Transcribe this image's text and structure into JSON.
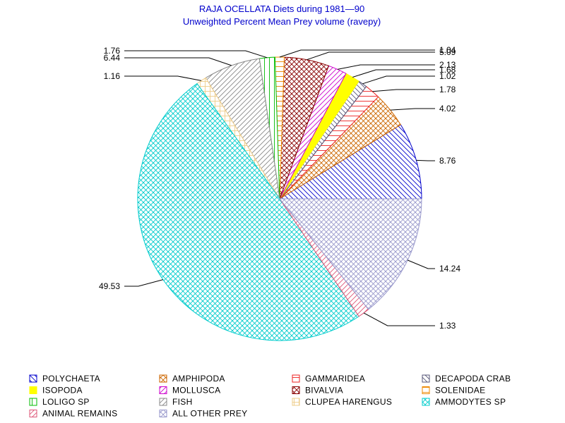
{
  "chart_data": {
    "type": "pie",
    "title": "RAJA OCELLATA Diets during 1981—90",
    "subtitle": "Unweighted Percent Mean Prey volume (ravepy)",
    "legend_placement": "bottom",
    "slices": [
      {
        "name": "POLYCHAETA",
        "value": 8.76,
        "label": "8.76",
        "color": "#0000cc",
        "pattern": "diag-down"
      },
      {
        "name": "AMPHIPODA",
        "value": 4.02,
        "label": "4.02",
        "color": "#cc6600",
        "pattern": "crosshatch"
      },
      {
        "name": "GAMMARIDEA",
        "value": 1.78,
        "label": "1.78",
        "color": "#ee2222",
        "pattern": "horizontal"
      },
      {
        "name": "DECAPODA CRAB",
        "value": 1.02,
        "label": "1.02",
        "color": "#555577",
        "pattern": "diag-down"
      },
      {
        "name": "ISOPODA",
        "value": 1.68,
        "label": "1.68",
        "color": "#ffff00",
        "pattern": "solid"
      },
      {
        "name": "MOLLUSCA",
        "value": 2.13,
        "label": "2.13",
        "color": "#cc00cc",
        "pattern": "diag-up"
      },
      {
        "name": "BIVALVIA",
        "value": 5.09,
        "label": "5.09",
        "color": "#880000",
        "pattern": "crosshatch"
      },
      {
        "name": "SOLENIDAE",
        "value": 1.04,
        "label": "1.04",
        "color": "#ee8800",
        "pattern": "horizontal"
      },
      {
        "name": "LOLIGO SP",
        "value": 1.76,
        "label": "1.76",
        "color": "#00bb00",
        "pattern": "vertical"
      },
      {
        "name": "FISH",
        "value": 6.44,
        "label": "6.44",
        "color": "#888888",
        "pattern": "diag-up"
      },
      {
        "name": "CLUPEA HARENGUS",
        "value": 1.16,
        "label": "1.16",
        "color": "#eecc88",
        "pattern": "grid"
      },
      {
        "name": "AMMODYTES SP",
        "value": 49.53,
        "label": "49.53",
        "color": "#00cccc",
        "pattern": "crosshatch"
      },
      {
        "name": "ANIMAL REMAINS",
        "value": 1.33,
        "label": "1.33",
        "color": "#dd5577",
        "pattern": "diag-up"
      },
      {
        "name": "ALL OTHER PREY",
        "value": 14.24,
        "label": "14.24",
        "color": "#9999cc",
        "pattern": "crosshatch"
      }
    ]
  }
}
